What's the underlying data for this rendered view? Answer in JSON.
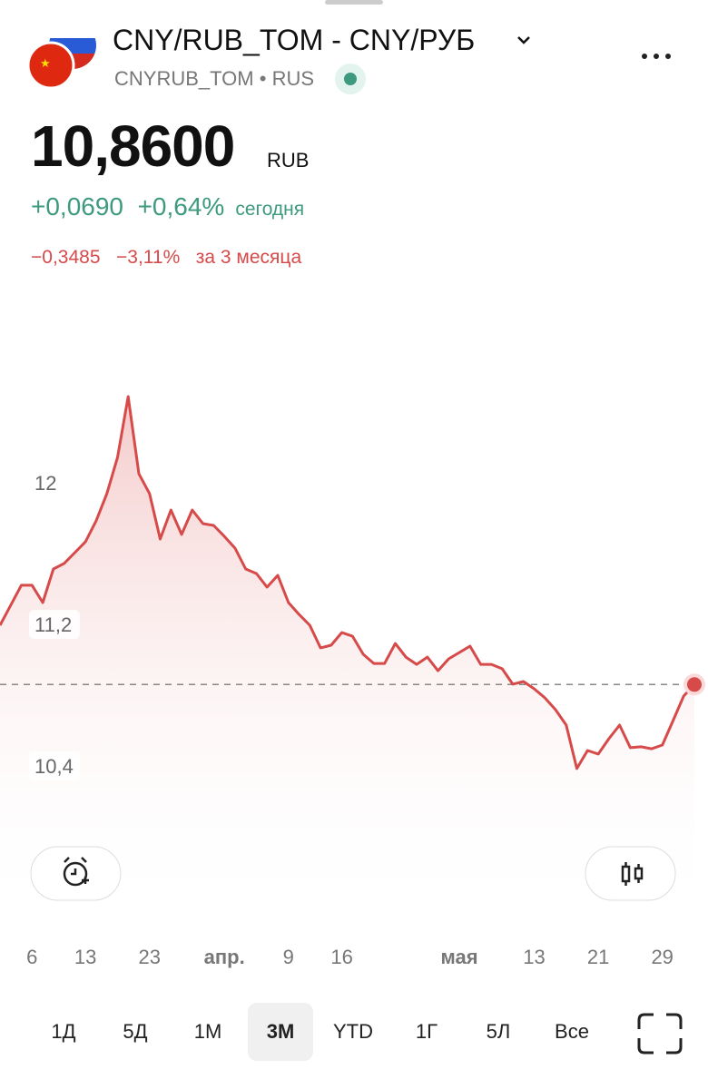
{
  "header": {
    "title": "CNY/RUB_TOM - CNY/РУБ",
    "ticker": "CNYRUB_TOM",
    "exchange": "RUS",
    "price": "10,8600",
    "currency": "RUB",
    "change_today": "+0,0690",
    "change_today_pct": "+0,64%",
    "today_label": "сегодня",
    "change_period": "−0,3485",
    "change_period_pct": "−3,11%",
    "period_label": "за 3 месяца"
  },
  "chart_data": {
    "type": "line",
    "color": "#d64a4a",
    "categories": [
      null,
      null,
      null,
      "6",
      null,
      null,
      null,
      null,
      "13",
      null,
      null,
      null,
      null,
      null,
      "23",
      null,
      null,
      null,
      null,
      null,
      null,
      "апр.",
      null,
      null,
      null,
      null,
      null,
      "9",
      null,
      null,
      null,
      null,
      "16",
      null,
      null,
      null,
      null,
      null,
      null,
      null,
      null,
      null,
      null,
      "мая",
      null,
      null,
      null,
      null,
      null,
      null,
      "13",
      null,
      null,
      null,
      null,
      null,
      "21",
      null,
      null,
      null,
      null,
      null,
      "29",
      null,
      null,
      null
    ],
    "values": [
      11.195,
      11.308,
      11.421,
      11.421,
      11.323,
      11.513,
      11.544,
      11.605,
      11.667,
      11.785,
      11.938,
      12.144,
      12.487,
      12.051,
      11.938,
      11.682,
      11.846,
      11.708,
      11.846,
      11.769,
      11.759,
      11.697,
      11.631,
      11.513,
      11.487,
      11.41,
      11.477,
      11.323,
      11.256,
      11.195,
      11.067,
      11.082,
      11.154,
      11.133,
      11.031,
      10.979,
      10.979,
      11.092,
      11.015,
      10.974,
      11.015,
      10.938,
      11.005,
      11.041,
      11.077,
      10.974,
      10.974,
      10.949,
      10.862,
      10.877,
      10.836,
      10.785,
      10.718,
      10.631,
      10.385,
      10.487,
      10.467,
      10.554,
      10.631,
      10.503,
      10.508,
      10.497,
      10.518,
      10.656,
      10.795,
      10.86
    ],
    "ylim": [
      9.6,
      13.2
    ],
    "yticks": [
      12,
      {
        "value": 11.2,
        "label": "11,2"
      },
      {
        "value": 10.4,
        "label": "10,4"
      }
    ]
  },
  "periods": {
    "items": [
      "1Д",
      "5Д",
      "1М",
      "3М",
      "YTD",
      "1Г",
      "5Л",
      "Все"
    ],
    "selected": 3
  }
}
